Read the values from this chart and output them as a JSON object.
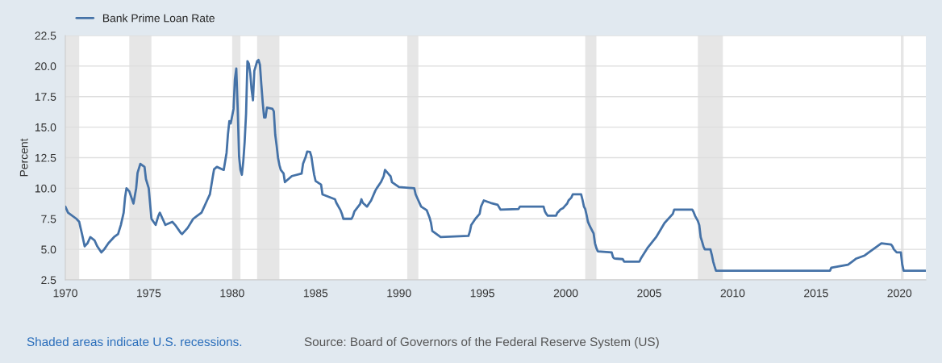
{
  "chart_data": {
    "type": "line",
    "ylabel": "Percent",
    "legend": "top left",
    "grid": "y",
    "xlim": [
      "1970-01",
      "2021-08"
    ],
    "xticks": [
      "1970",
      "1975",
      "1980",
      "1985",
      "1990",
      "1995",
      "2000",
      "2005",
      "2010",
      "2015",
      "2020"
    ],
    "ylim": [
      2.5,
      22.5
    ],
    "yticks": [
      2.5,
      {
        "value": 5,
        "label": "5.0"
      },
      7.5,
      {
        "value": 10,
        "label": "10.0"
      },
      12.5,
      {
        "value": 15,
        "label": "15.0"
      },
      17.5,
      {
        "value": 20,
        "label": "20.0"
      },
      22.5
    ],
    "bands": [
      {
        "axis": "x",
        "from": "1970-01",
        "to": "1970-11",
        "color": "#e6e6e6"
      },
      {
        "axis": "x",
        "from": "1973-11",
        "to": "1975-03",
        "color": "#e6e6e6"
      },
      {
        "axis": "x",
        "from": "1980-01",
        "to": "1980-07",
        "color": "#e6e6e6"
      },
      {
        "axis": "x",
        "from": "1981-07",
        "to": "1982-11",
        "color": "#e6e6e6"
      },
      {
        "axis": "x",
        "from": "1990-07",
        "to": "1991-03",
        "color": "#e6e6e6"
      },
      {
        "axis": "x",
        "from": "2001-03",
        "to": "2001-11",
        "color": "#e6e6e6"
      },
      {
        "axis": "x",
        "from": "2007-12",
        "to": "2009-06",
        "color": "#e6e6e6"
      },
      {
        "axis": "x",
        "from": "2020-02",
        "to": "2020-04",
        "color": "#e6e6e6"
      }
    ],
    "annotations": [
      "Shaded areas indicate U.S. recessions.",
      "Source: Board of Governors of the Federal Reserve System (US)"
    ],
    "series": [
      {
        "name": "Bank Prime Loan Rate",
        "color": "#4572a7",
        "x": [
          "1970-01",
          "1970-03",
          "1970-09",
          "1970-11",
          "1970-12",
          "1971-01",
          "1971-03",
          "1971-05",
          "1971-07",
          "1971-10",
          "1971-12",
          "1972-03",
          "1972-05",
          "1972-08",
          "1972-12",
          "1973-03",
          "1973-05",
          "1973-07",
          "1973-08",
          "1973-09",
          "1973-11",
          "1974-02",
          "1974-04",
          "1974-05",
          "1974-07",
          "1974-10",
          "1974-11",
          "1975-01",
          "1975-03",
          "1975-06",
          "1975-08",
          "1975-09",
          "1975-12",
          "1976-01",
          "1976-06",
          "1976-08",
          "1976-12",
          "1977-01",
          "1977-05",
          "1977-09",
          "1977-12",
          "1978-03",
          "1978-07",
          "1978-09",
          "1978-11",
          "1978-12",
          "1979-02",
          "1979-07",
          "1979-09",
          "1979-10",
          "1979-11",
          "1979-12",
          "1980-02",
          "1980-03",
          "1980-04",
          "1980-05",
          "1980-06",
          "1980-07",
          "1980-08",
          "1980-09",
          "1980-10",
          "1980-11",
          "1980-12",
          "1981-01",
          "1981-02",
          "1981-03",
          "1981-04",
          "1981-05",
          "1981-06",
          "1981-07",
          "1981-08",
          "1981-09",
          "1981-10",
          "1981-11",
          "1981-12",
          "1982-01",
          "1982-02",
          "1982-06",
          "1982-07",
          "1982-08",
          "1982-09",
          "1982-10",
          "1982-11",
          "1982-12",
          "1983-02",
          "1983-03",
          "1983-08",
          "1984-03",
          "1984-04",
          "1984-06",
          "1984-07",
          "1984-09",
          "1984-10",
          "1984-11",
          "1984-12",
          "1985-01",
          "1985-05",
          "1985-06",
          "1986-03",
          "1986-04",
          "1986-07",
          "1986-08",
          "1986-09",
          "1987-03",
          "1987-04",
          "1987-05",
          "1987-09",
          "1987-10",
          "1987-11",
          "1988-02",
          "1988-05",
          "1988-08",
          "1988-09",
          "1988-12",
          "1989-02",
          "1989-03",
          "1989-06",
          "1989-07",
          "1989-08",
          "1990-01",
          "1990-12",
          "1991-01",
          "1991-03",
          "1991-05",
          "1991-09",
          "1991-11",
          "1991-12",
          "1992-01",
          "1992-07",
          "1994-03",
          "1994-04",
          "1994-05",
          "1994-08",
          "1994-11",
          "1994-12",
          "1995-02",
          "1995-07",
          "1995-12",
          "1996-02",
          "1997-03",
          "1997-04",
          "1998-09",
          "1998-10",
          "1998-11",
          "1998-12",
          "1999-06",
          "1999-07",
          "1999-08",
          "1999-09",
          "1999-11",
          "1999-12",
          "2000-02",
          "2000-03",
          "2000-05",
          "2000-06",
          "2000-12",
          "2001-01",
          "2001-02",
          "2001-03",
          "2001-04",
          "2001-05",
          "2001-06",
          "2001-07",
          "2001-09",
          "2001-10",
          "2001-11",
          "2001-12",
          "2002-10",
          "2002-11",
          "2002-12",
          "2003-06",
          "2003-07",
          "2004-06",
          "2004-07",
          "2004-12",
          "2005-06",
          "2005-12",
          "2006-06",
          "2006-07",
          "2007-08",
          "2007-09",
          "2007-10",
          "2007-12",
          "2008-01",
          "2008-02",
          "2008-03",
          "2008-04",
          "2008-05",
          "2008-09",
          "2008-10",
          "2008-11",
          "2008-12",
          "2009-01",
          "2015-11",
          "2015-12",
          "2016-12",
          "2017-03",
          "2017-06",
          "2017-12",
          "2018-03",
          "2018-06",
          "2018-09",
          "2018-12",
          "2019-07",
          "2019-08",
          "2019-09",
          "2019-11",
          "2020-02",
          "2020-03",
          "2020-04",
          "2021-08"
        ],
        "values": [
          8.5,
          8.0,
          7.5,
          7.25,
          6.75,
          6.25,
          5.25,
          5.5,
          6.0,
          5.75,
          5.25,
          4.75,
          5.0,
          5.5,
          6.0,
          6.25,
          7.0,
          8.0,
          9.25,
          10.0,
          9.75,
          8.75,
          10.0,
          11.25,
          12.0,
          11.75,
          10.75,
          10.0,
          7.5,
          7.0,
          7.75,
          8.0,
          7.25,
          7.0,
          7.25,
          7.0,
          6.35,
          6.25,
          6.75,
          7.5,
          7.75,
          8.0,
          9.0,
          9.5,
          10.9,
          11.55,
          11.75,
          11.5,
          12.9,
          14.4,
          15.5,
          15.3,
          16.5,
          18.9,
          19.8,
          16.6,
          12.6,
          11.5,
          11.1,
          12.2,
          13.8,
          16.1,
          20.4,
          20.2,
          19.4,
          18.1,
          17.2,
          19.6,
          20.0,
          20.4,
          20.5,
          20.1,
          18.5,
          17.0,
          15.8,
          15.8,
          16.6,
          16.5,
          16.3,
          14.4,
          13.5,
          12.5,
          11.9,
          11.5,
          11.2,
          10.5,
          11.0,
          11.2,
          12.0,
          12.6,
          13.0,
          12.97,
          12.6,
          11.8,
          11.1,
          10.6,
          10.3,
          9.5,
          9.1,
          8.8,
          8.2,
          7.9,
          7.5,
          7.5,
          7.75,
          8.1,
          8.7,
          9.1,
          8.8,
          8.5,
          9.0,
          9.8,
          10.0,
          10.5,
          11.0,
          11.5,
          11.1,
          10.98,
          10.5,
          10.1,
          10.0,
          9.5,
          9.0,
          8.5,
          8.2,
          7.6,
          7.2,
          6.5,
          6.0,
          6.1,
          6.45,
          6.99,
          7.5,
          7.9,
          8.5,
          9.0,
          8.8,
          8.65,
          8.25,
          8.3,
          8.5,
          8.5,
          8.1,
          7.9,
          7.75,
          7.75,
          8.0,
          8.1,
          8.25,
          8.37,
          8.5,
          8.75,
          9.0,
          9.24,
          9.5,
          9.5,
          9.05,
          8.5,
          8.3,
          7.8,
          7.24,
          6.98,
          6.75,
          6.3,
          5.5,
          5.1,
          4.84,
          4.75,
          4.35,
          4.25,
          4.2,
          4.0,
          4.0,
          4.25,
          5.15,
          6.0,
          7.15,
          7.9,
          8.25,
          8.25,
          8.03,
          7.74,
          7.33,
          6.98,
          6.0,
          5.66,
          5.24,
          5.0,
          5.0,
          4.56,
          4.0,
          3.61,
          3.25,
          3.25,
          3.5,
          3.75,
          4.0,
          4.25,
          4.5,
          4.75,
          5.0,
          5.25,
          5.5,
          5.4,
          5.25,
          5.0,
          4.75,
          4.75,
          3.78,
          3.25,
          3.25
        ]
      }
    ]
  }
}
